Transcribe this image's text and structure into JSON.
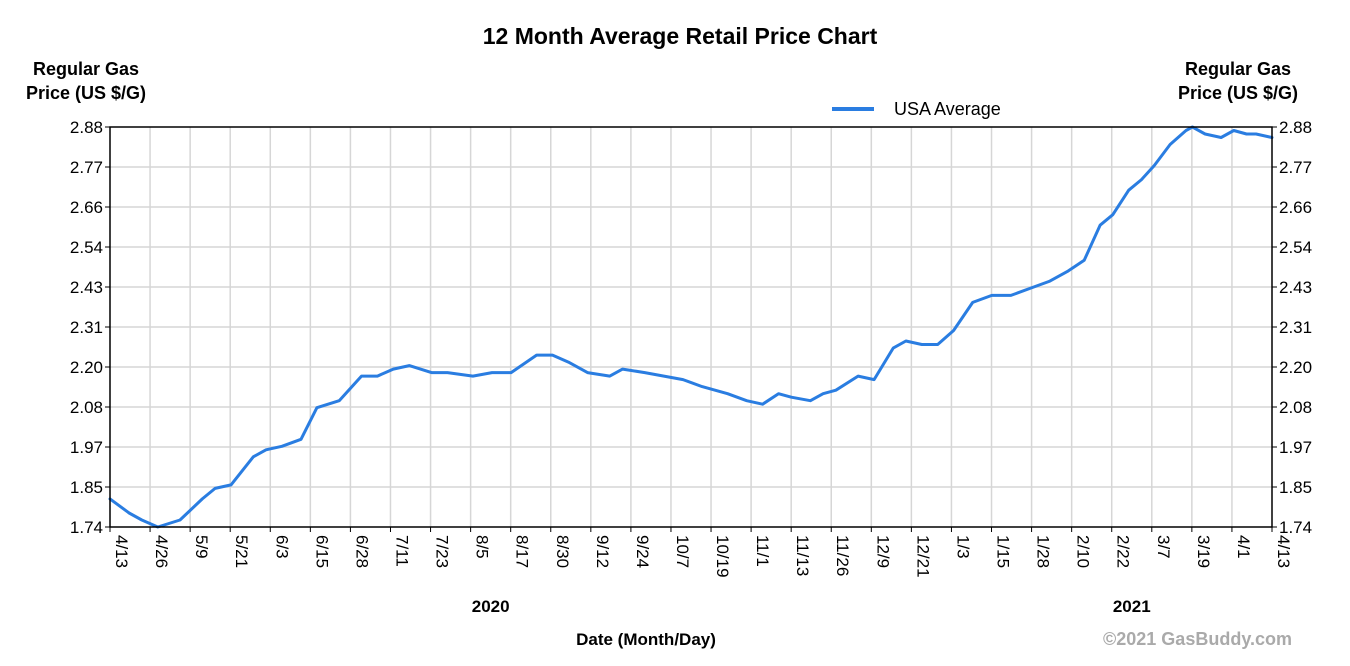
{
  "chart_data": {
    "type": "line",
    "title": "12 Month Average Retail Price Chart",
    "ylabel_left": [
      "Regular Gas",
      "Price (US $/G)"
    ],
    "ylabel_right": [
      "Regular Gas",
      "Price (US $/G)"
    ],
    "xlabel": "Date (Month/Day)",
    "ylim": [
      1.74,
      2.88
    ],
    "yticks": [
      "1.74",
      "1.85",
      "1.97",
      "2.08",
      "2.20",
      "2.31",
      "2.43",
      "2.54",
      "2.66",
      "2.77",
      "2.88"
    ],
    "xtick_labels": [
      "4/13",
      "4/26",
      "5/9",
      "5/21",
      "6/3",
      "6/15",
      "6/28",
      "7/11",
      "7/23",
      "8/5",
      "8/17",
      "8/30",
      "9/12",
      "9/24",
      "10/7",
      "10/19",
      "11/1",
      "11/13",
      "11/26",
      "12/9",
      "12/21",
      "1/3",
      "1/15",
      "1/28",
      "2/10",
      "2/22",
      "3/7",
      "3/19",
      "4/1",
      "4/13"
    ],
    "years": [
      {
        "label": "2020",
        "after_tick": "8/5"
      },
      {
        "label": "2021",
        "after_tick": "2/22"
      }
    ],
    "grid": true,
    "legend": "top-right",
    "colors": {
      "line": "#2a7de1",
      "grid": "#d6d6d6",
      "frame": "#000000"
    },
    "series": [
      {
        "name": "USA Average",
        "x": [
          "2020-04-13",
          "2020-04-19",
          "2020-04-23",
          "2020-04-28",
          "2020-05-05",
          "2020-05-12",
          "2020-05-16",
          "2020-05-21",
          "2020-05-28",
          "2020-06-01",
          "2020-06-06",
          "2020-06-12",
          "2020-06-17",
          "2020-06-24",
          "2020-07-01",
          "2020-07-06",
          "2020-07-11",
          "2020-07-16",
          "2020-07-23",
          "2020-07-28",
          "2020-08-05",
          "2020-08-11",
          "2020-08-17",
          "2020-08-25",
          "2020-08-28",
          "2020-08-30",
          "2020-09-04",
          "2020-09-10",
          "2020-09-17",
          "2020-09-21",
          "2020-09-28",
          "2020-10-04",
          "2020-10-10",
          "2020-10-16",
          "2020-10-24",
          "2020-10-30",
          "2020-11-04",
          "2020-11-09",
          "2020-11-13",
          "2020-11-19",
          "2020-11-23",
          "2020-11-27",
          "2020-12-04",
          "2020-12-09",
          "2020-12-15",
          "2020-12-19",
          "2020-12-24",
          "2020-12-29",
          "2021-01-03",
          "2021-01-09",
          "2021-01-15",
          "2021-01-21",
          "2021-01-27",
          "2021-02-02",
          "2021-02-08",
          "2021-02-13",
          "2021-02-18",
          "2021-02-22",
          "2021-02-27",
          "2021-03-03",
          "2021-03-07",
          "2021-03-12",
          "2021-03-17",
          "2021-03-19",
          "2021-03-23",
          "2021-03-28",
          "2021-04-01",
          "2021-04-05",
          "2021-04-08",
          "2021-04-13"
        ],
        "y": [
          1.82,
          1.78,
          1.76,
          1.74,
          1.76,
          1.82,
          1.85,
          1.86,
          1.94,
          1.96,
          1.97,
          1.99,
          2.08,
          2.1,
          2.17,
          2.17,
          2.19,
          2.2,
          2.18,
          2.18,
          2.17,
          2.18,
          2.18,
          2.23,
          2.23,
          2.23,
          2.21,
          2.18,
          2.17,
          2.19,
          2.18,
          2.17,
          2.16,
          2.14,
          2.12,
          2.1,
          2.09,
          2.12,
          2.11,
          2.1,
          2.12,
          2.13,
          2.17,
          2.16,
          2.25,
          2.27,
          2.26,
          2.26,
          2.3,
          2.38,
          2.4,
          2.4,
          2.42,
          2.44,
          2.47,
          2.5,
          2.6,
          2.63,
          2.7,
          2.73,
          2.77,
          2.83,
          2.87,
          2.88,
          2.86,
          2.85,
          2.87,
          2.86,
          2.86,
          2.85
        ]
      }
    ]
  },
  "credit": "©2021 GasBuddy.com"
}
